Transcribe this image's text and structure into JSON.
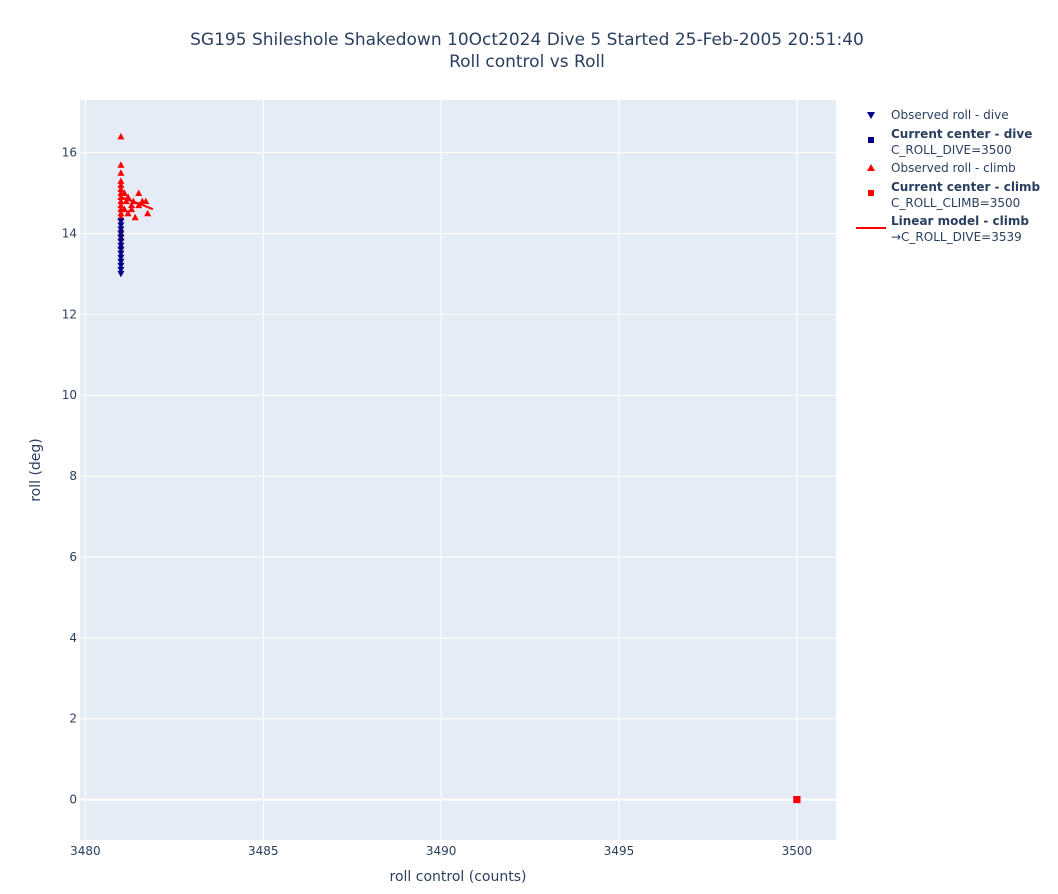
{
  "chart_data": {
    "type": "scatter",
    "title_line1": "SG195 Shileshole Shakedown 10Oct2024 Dive 5 Started 25-Feb-2005 20:51:40",
    "title_line2": "Roll control vs Roll",
    "xlabel": "roll control (counts)",
    "ylabel": "roll (deg)",
    "xlim": [
      3479.85,
      3501.1
    ],
    "ylim": [
      -1.0,
      17.3
    ],
    "xticks": [
      3480,
      3485,
      3490,
      3495,
      3500
    ],
    "yticks": [
      0,
      2,
      4,
      6,
      8,
      10,
      12,
      14,
      16
    ],
    "grid": true,
    "legend_position": "right",
    "colors": {
      "dive": "#00008b",
      "climb": "#ff0000",
      "plot_bg": "#e5ecf6",
      "grid": "#ffffff"
    },
    "series": [
      {
        "name": "Observed roll - dive",
        "marker": "triangle-down",
        "color": "#00008b",
        "points": [
          [
            3481,
            13.0
          ],
          [
            3481,
            13.1
          ],
          [
            3481,
            13.2
          ],
          [
            3481,
            13.3
          ],
          [
            3481,
            13.4
          ],
          [
            3481,
            13.5
          ],
          [
            3481,
            13.6
          ],
          [
            3481,
            13.7
          ],
          [
            3481,
            13.8
          ],
          [
            3481,
            13.9
          ],
          [
            3481,
            14.0
          ],
          [
            3481,
            14.1
          ],
          [
            3481,
            14.2
          ],
          [
            3481,
            14.3
          ]
        ]
      },
      {
        "name": "Current center - dive",
        "subtitle": "C_ROLL_DIVE=3500",
        "marker": "square",
        "color": "#00008b",
        "points": [
          [
            3500,
            0
          ]
        ]
      },
      {
        "name": "Observed roll - climb",
        "marker": "triangle-up",
        "color": "#ff0000",
        "points": [
          [
            3481,
            16.4
          ],
          [
            3481,
            15.7
          ],
          [
            3481,
            15.5
          ],
          [
            3481,
            15.3
          ],
          [
            3481,
            15.2
          ],
          [
            3481,
            15.1
          ],
          [
            3481,
            15.0
          ],
          [
            3481,
            14.9
          ],
          [
            3481,
            14.8
          ],
          [
            3481,
            14.7
          ],
          [
            3481,
            14.6
          ],
          [
            3481,
            14.5
          ],
          [
            3481,
            14.4
          ],
          [
            3481,
            14.1
          ],
          [
            3481,
            14.0
          ],
          [
            3481,
            13.9
          ],
          [
            3481,
            13.7
          ],
          [
            3481.1,
            15.0
          ],
          [
            3481.1,
            14.6
          ],
          [
            3481.15,
            14.8
          ],
          [
            3481.2,
            14.9
          ],
          [
            3481.2,
            14.5
          ],
          [
            3481.3,
            14.6
          ],
          [
            3481.3,
            14.7
          ],
          [
            3481.35,
            14.8
          ],
          [
            3481.4,
            14.4
          ],
          [
            3481.5,
            15.0
          ],
          [
            3481.5,
            14.7
          ],
          [
            3481.6,
            14.8
          ],
          [
            3481.7,
            14.8
          ],
          [
            3481.75,
            14.5
          ]
        ]
      },
      {
        "name": "Current center - climb",
        "subtitle": "C_ROLL_CLIMB=3500",
        "marker": "square",
        "color": "#ff0000",
        "points": [
          [
            3500,
            0
          ]
        ]
      },
      {
        "name": "Linear model - climb",
        "subtitle": "→C_ROLL_DIVE=3539",
        "marker": "line",
        "color": "#ff0000",
        "points": [
          [
            3481,
            14.9
          ],
          [
            3481.5,
            14.74
          ],
          [
            3481.9,
            14.6
          ]
        ]
      }
    ]
  }
}
